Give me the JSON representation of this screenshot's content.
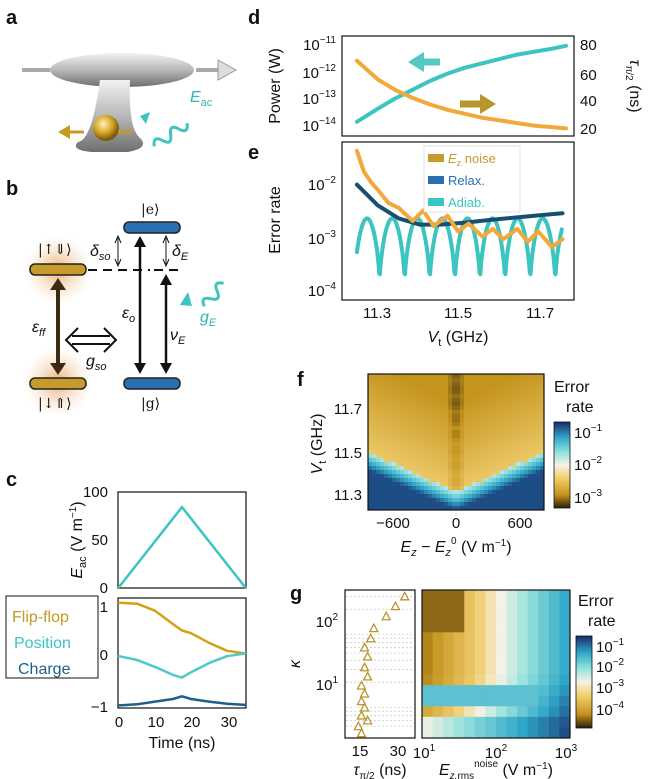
{
  "panels": {
    "a": "a",
    "b": "b",
    "c": "c",
    "d": "d",
    "e": "e",
    "f": "f",
    "g": "g"
  },
  "colors": {
    "flipflop": "#d4a017",
    "flipflop_line": "#f2a83a",
    "position": "#4fc9c6",
    "charge": "#1d5f8a",
    "cyan": "#3cc4c0",
    "gold": "#c79a2c",
    "relax": "#16506e"
  },
  "panel_a": {
    "field_label": "E",
    "field_sub": "ac"
  },
  "panel_b": {
    "states": [
      "|↑⇓⟩",
      "|↓⇑⟩",
      "|e⟩",
      "|g⟩"
    ],
    "labels": {
      "eps_ff": "ε",
      "eps_ff_sub": "ff",
      "g_so": "g",
      "g_so_sub": "so",
      "eps_o": "ε",
      "eps_o_sub": "o",
      "nu_E": "ν",
      "nu_E_sub": "E",
      "delta_so": "δ",
      "delta_so_sub": "so",
      "delta_E": "δ",
      "delta_E_sub": "E",
      "g_E": "g",
      "g_E_sub": "E"
    }
  },
  "panel_c": {
    "top_ylabel": "E",
    "top_ylabel_sub": "ac",
    "top_ylabel_unit": "(V m",
    "xlabel": "Time (ns)",
    "legend": [
      "Flip-flop",
      "Position",
      "Charge"
    ],
    "top_yticks": [
      "100",
      "50",
      "0"
    ],
    "bottom_yticks": [
      "1",
      "0",
      "−1"
    ],
    "xticks": [
      "0",
      "10",
      "20",
      "30"
    ]
  },
  "panel_d": {
    "ylabel_left": "Power (W)",
    "ylabel_right_sym": "τ",
    "ylabel_right_sub": "π/2",
    "ylabel_right_unit": "(ns)",
    "left_yticks": [
      "10",
      "10",
      "10",
      "10"
    ],
    "left_yticks_exp": [
      "−11",
      "−12",
      "−13",
      "−14"
    ],
    "right_yticks": [
      "80",
      "60",
      "40",
      "20"
    ]
  },
  "panel_e": {
    "ylabel": "Error rate",
    "xlabel": "V",
    "xlabel_sub": "t",
    "xlabel_unit": "(GHz)",
    "legend": [
      "E",
      "Relax.",
      "Adiab."
    ],
    "legend_first_sub": "z",
    "legend_first_rest": "noise",
    "yticks": [
      "10",
      "10",
      "10"
    ],
    "yticks_exp": [
      "−2",
      "−3",
      "−4"
    ],
    "xticks": [
      "11.3",
      "11.5",
      "11.7"
    ]
  },
  "panel_f": {
    "ylabel": "V",
    "ylabel_sub": "t",
    "ylabel_unit": "(GHz)",
    "yticks": [
      "11.7",
      "11.5",
      "11.3"
    ],
    "xticks": [
      "−600",
      "0",
      "600"
    ],
    "xlabel": "E",
    "colorbar_title": [
      "Error",
      "rate"
    ],
    "colorbar_ticks": [
      "10",
      "10",
      "10"
    ],
    "colorbar_exp": [
      "−1",
      "−2",
      "−3"
    ]
  },
  "panel_g": {
    "ylabel": "κ",
    "yticks": [
      "10",
      "10"
    ],
    "yticks_exp": [
      "2",
      "1"
    ],
    "left_xticks": [
      "15",
      "30"
    ],
    "left_xlabel": "τ",
    "left_xlabel_sub": "π/2",
    "left_xlabel_unit": "(ns)",
    "right_xticks": [
      "10",
      "10",
      "10"
    ],
    "right_xticks_exp": [
      "1",
      "2",
      "3"
    ],
    "colorbar_title": [
      "Error",
      "rate"
    ],
    "colorbar_ticks": [
      "10",
      "10",
      "10",
      "10"
    ],
    "colorbar_exp": [
      "−1",
      "−2",
      "−3",
      "−4"
    ]
  },
  "chart_data": [
    {
      "id": "c_top",
      "type": "line",
      "x": [
        0,
        17.5,
        35
      ],
      "series": [
        {
          "values": [
            0,
            85,
            0
          ]
        }
      ],
      "xlim": [
        0,
        35
      ],
      "ylim": [
        0,
        100
      ]
    },
    {
      "id": "c_bottom",
      "type": "line",
      "x": [
        0,
        5,
        10,
        15,
        17.5,
        20,
        25,
        30,
        35
      ],
      "series": [
        {
          "name": "Flip-flop",
          "values": [
            0.95,
            0.93,
            0.8,
            0.55,
            0.43,
            0.38,
            0.2,
            0.05,
            0.0
          ]
        },
        {
          "name": "Position",
          "values": [
            -0.05,
            -0.12,
            -0.25,
            -0.4,
            -0.45,
            -0.35,
            -0.18,
            -0.05,
            0.0
          ]
        },
        {
          "name": "Charge",
          "values": [
            -0.97,
            -0.95,
            -0.9,
            -0.85,
            -0.8,
            -0.85,
            -0.9,
            -0.94,
            -0.96
          ]
        }
      ],
      "xlim": [
        0,
        35
      ],
      "ylim": [
        -1,
        1
      ]
    },
    {
      "id": "d",
      "type": "line",
      "x": [
        11.24,
        11.3,
        11.35,
        11.4,
        11.45,
        11.5,
        11.55,
        11.6,
        11.65,
        11.7,
        11.75,
        11.8,
        11.84
      ],
      "series": [
        {
          "axis": "left_log",
          "values": [
            -11.8,
            -12.5,
            -12.9,
            -13.2,
            -13.45,
            -13.65,
            -13.8,
            -13.95,
            -14.05,
            -14.15,
            -14.25,
            -14.3,
            -14.35
          ]
        },
        {
          "axis": "right",
          "values": [
            24,
            33,
            40,
            46,
            52,
            57,
            61,
            64,
            67,
            70,
            72,
            74,
            76
          ]
        }
      ],
      "left_ylim_log10": [
        -14.6,
        -10.9
      ],
      "right_ylim": [
        15,
        82
      ],
      "xlim": [
        11.2,
        11.86
      ]
    },
    {
      "id": "e",
      "type": "line",
      "log_y": true,
      "xlim": [
        11.2,
        11.86
      ],
      "ylim_log10": [
        -4.3,
        -1.3
      ],
      "series": [
        {
          "name": "Ez noise",
          "x": [
            11.24,
            11.26,
            11.28,
            11.3,
            11.33,
            11.36,
            11.4,
            11.43,
            11.46,
            11.5,
            11.53,
            11.56,
            11.6,
            11.63,
            11.66,
            11.7,
            11.73,
            11.76,
            11.8,
            11.83
          ],
          "log10": [
            -1.45,
            -1.85,
            -2.05,
            -2.2,
            -2.45,
            -2.55,
            -2.8,
            -2.6,
            -2.9,
            -2.7,
            -3.0,
            -2.85,
            -3.1,
            -2.95,
            -3.15,
            -2.95,
            -3.2,
            -3.0,
            -3.3,
            -3.15
          ]
        },
        {
          "name": "Relax.",
          "x": [
            11.24,
            11.3,
            11.36,
            11.42,
            11.48,
            11.55,
            11.62,
            11.7,
            11.78,
            11.83
          ],
          "log10": [
            -2.1,
            -2.5,
            -2.75,
            -2.87,
            -2.87,
            -2.83,
            -2.78,
            -2.73,
            -2.68,
            -2.65
          ]
        },
        {
          "name": "Adiab.",
          "period": 0.072,
          "x_start": 11.24,
          "x_end": 11.83,
          "log10_min": -4.0,
          "log10_max": -2.75
        }
      ]
    },
    {
      "id": "f",
      "type": "heatmap",
      "xlim": [
        -800,
        800
      ],
      "ylim": [
        11.22,
        11.83
      ],
      "colorbar_log10": [
        -3.2,
        -0.8
      ]
    },
    {
      "id": "g_left",
      "type": "scatter",
      "x": [
        19,
        18,
        21,
        19,
        20,
        19,
        20,
        19,
        21,
        20,
        21,
        20,
        22,
        23,
        27,
        30,
        33
      ],
      "kappa": [
        4,
        5,
        6,
        7,
        9,
        11,
        14,
        18,
        24,
        32,
        45,
        60,
        80,
        110,
        160,
        220,
        300
      ],
      "xlim": [
        14,
        36
      ],
      "ylim_log10": [
        0.55,
        2.55
      ]
    },
    {
      "id": "g_right",
      "type": "heatmap",
      "xlim_log10": [
        1,
        3
      ],
      "ylim_log10": [
        0.55,
        2.55
      ],
      "colorbar_log10": [
        -4.3,
        -0.8
      ]
    }
  ]
}
